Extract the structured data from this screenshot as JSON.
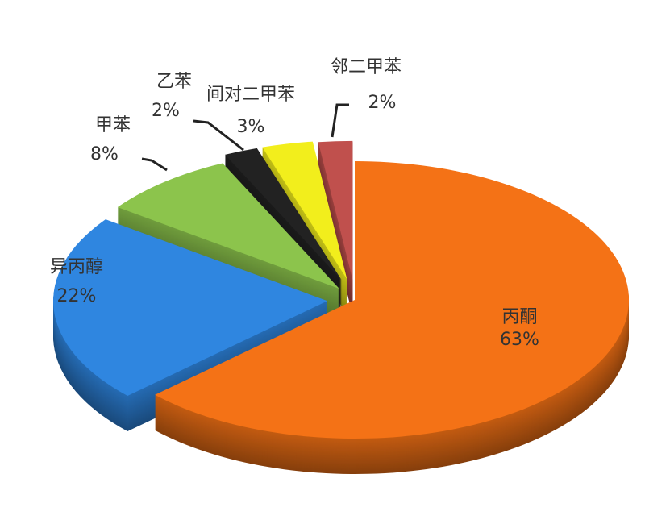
{
  "chart_data": {
    "type": "pie",
    "style": "3d-exploded",
    "categories": [
      "丙酮",
      "异丙醇",
      "甲苯",
      "乙苯",
      "间对二甲苯",
      "邻二甲苯"
    ],
    "values": [
      63,
      22,
      8,
      2,
      3,
      2
    ],
    "labels": [
      "63%",
      "22%",
      "8%",
      "2%",
      "3%",
      "2%"
    ],
    "colors": [
      "#f47216",
      "#2f86e0",
      "#8cc44c",
      "#222222",
      "#f2ee1c",
      "#c0504d"
    ]
  }
}
